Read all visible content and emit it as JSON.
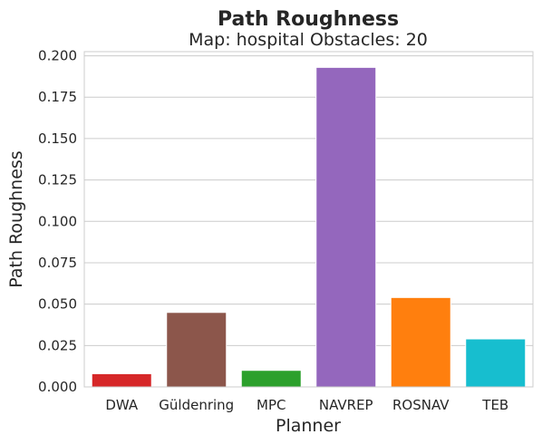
{
  "chart_data": {
    "type": "bar",
    "title": "Path Roughness",
    "subtitle": "Map: hospital Obstacles: 20",
    "xlabel": "Planner",
    "ylabel": "Path Roughness",
    "categories": [
      "DWA",
      "Güldenring",
      "MPC",
      "NAVREP",
      "ROSNAV",
      "TEB"
    ],
    "values": [
      0.008,
      0.045,
      0.01,
      0.193,
      0.054,
      0.029
    ],
    "colors": [
      "#d62728",
      "#8c564b",
      "#2ca02c",
      "#9467bd",
      "#ff7f0e",
      "#17becf"
    ],
    "ylim": [
      0,
      0.2025
    ],
    "yticks": [
      "0.000",
      "0.025",
      "0.050",
      "0.075",
      "0.100",
      "0.125",
      "0.150",
      "0.175",
      "0.200"
    ],
    "grid": "horizontal",
    "legend": "none"
  }
}
